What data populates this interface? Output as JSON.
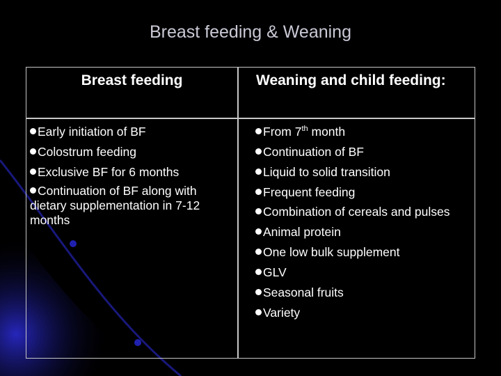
{
  "slide": {
    "title": "Breast feeding & Weaning",
    "columns": [
      {
        "header": "Breast feeding",
        "items": [
          "Early initiation of BF",
          "Colostrum feeding",
          "Exclusive BF for 6 months",
          "Continuation of BF along with dietary supplementation in 7-12 months"
        ]
      },
      {
        "header": "Weaning and child feeding:",
        "first_item": {
          "prefix": "From 7",
          "sup": "th",
          "suffix": " month"
        },
        "items": [
          "Continuation of BF",
          "Liquid to solid transition",
          "Frequent feeding",
          "Combination of cereals and pulses",
          "Animal protein",
          "One low bulk supplement",
          "GLV",
          "Seasonal fruits",
          "Variety"
        ]
      }
    ]
  },
  "colors": {
    "background": "#000000",
    "swoosh": "#1a1aa8",
    "grid": "#c8c8c8",
    "title": "#c9c9d6"
  }
}
